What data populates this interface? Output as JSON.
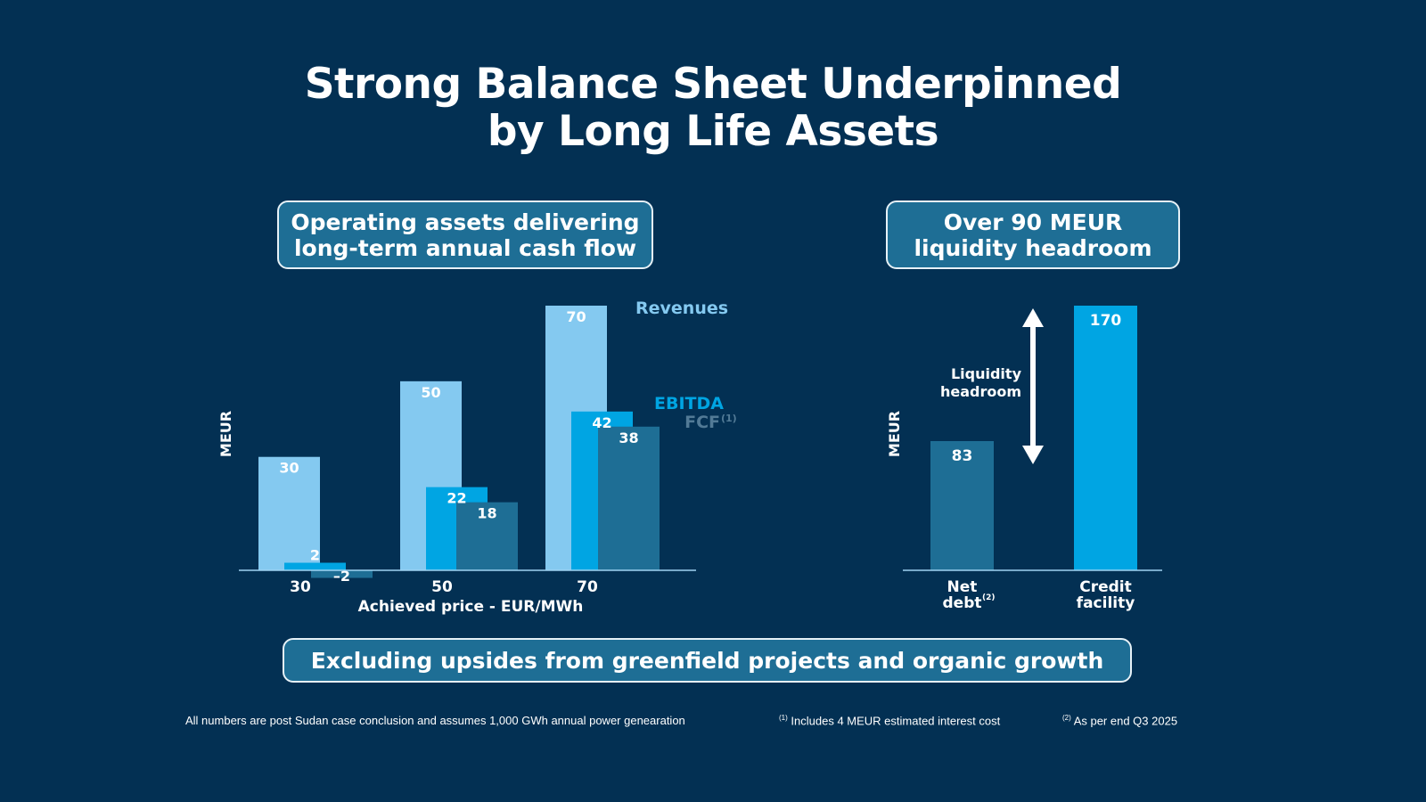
{
  "title": {
    "line1": "Strong Balance Sheet Underpinned",
    "line2": "by Long Life Assets"
  },
  "left_box": {
    "line1": "Operating assets delivering",
    "line2": "long-term annual cash flow"
  },
  "right_box": {
    "line1": "Over 90 MEUR",
    "line2": "liquidity headroom"
  },
  "bottom_box": {
    "text": "Excluding upsides from greenfield projects and organic growth"
  },
  "colors": {
    "background": "#033053",
    "revenues": "#84c9f0",
    "ebitda": "#00a5e3",
    "fcf": "#1e6e95",
    "axis": "#9fd3f2",
    "fcf_label": "#527a96"
  },
  "chart_data": [
    {
      "type": "bar",
      "title": "Operating assets delivering long-term annual cash flow",
      "xlabel": "Achieved price - EUR/MWh",
      "ylabel": "MEUR",
      "categories": [
        "30",
        "50",
        "70"
      ],
      "series": [
        {
          "name": "Revenues",
          "values": [
            30,
            50,
            70
          ]
        },
        {
          "name": "EBITDA",
          "values": [
            2,
            22,
            42
          ]
        },
        {
          "name": "FCF",
          "footnote": "(1)",
          "values": [
            -2,
            18,
            38
          ]
        }
      ],
      "ylim": [
        -6,
        72
      ],
      "grid": false,
      "legend": "right, inline"
    },
    {
      "type": "bar",
      "title": "Over 90 MEUR liquidity headroom",
      "ylabel": "MEUR",
      "categories": [
        "Net debt",
        "Credit facility"
      ],
      "category_lines": [
        [
          "Net",
          "debt"
        ],
        [
          "Credit",
          "facility"
        ]
      ],
      "category_footnotes": [
        "(2)",
        ""
      ],
      "values": [
        83,
        170
      ],
      "annotation": {
        "lines": [
          "Liquidity",
          "headroom"
        ],
        "type": "double-arrow"
      },
      "ylim": [
        0,
        170
      ],
      "grid": false
    }
  ],
  "footnotes": {
    "main": "All numbers are post Sudan case conclusion and assumes 1,000 GWh annual power genearation",
    "note1_mark": "(1)",
    "note1": "Includes 4 MEUR estimated interest cost",
    "note2_mark": "(2)",
    "note2": "As per end Q3 2025"
  }
}
